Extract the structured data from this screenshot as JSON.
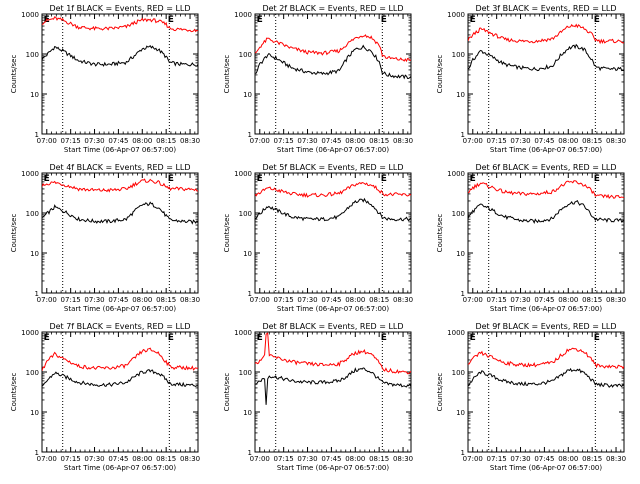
{
  "chart_data": {
    "type": "line",
    "ylabel": "Counts/sec",
    "xlabel": "Start Time (06-Apr-07 06:57:00)",
    "x_unit": "minutes",
    "xlim": [
      -3,
      95
    ],
    "ylim": [
      1,
      1000
    ],
    "yscale": "log",
    "xticks": [
      {
        "label": "07:00",
        "value": 0
      },
      {
        "label": "07:15",
        "value": 15
      },
      {
        "label": "07:30",
        "value": 30
      },
      {
        "label": "07:45",
        "value": 45
      },
      {
        "label": "08:00",
        "value": 60
      },
      {
        "label": "08:15",
        "value": 75
      },
      {
        "label": "08:30",
        "value": 90
      }
    ],
    "yticks": [
      {
        "label": "1",
        "value": 1
      },
      {
        "label": "10",
        "value": 10
      },
      {
        "label": "100",
        "value": 100
      },
      {
        "label": "1000",
        "value": 1000
      }
    ],
    "vlines": [
      10,
      77
    ],
    "markers": [
      {
        "label": "E",
        "x": -2
      },
      {
        "label": "E",
        "x": 76
      }
    ],
    "series_names": {
      "black": "Events",
      "red": "LLD"
    },
    "panels": [
      {
        "title": "Det 1f BLACK = Events, RED = LLD",
        "red": {
          "x": [
            -3,
            0,
            5,
            10,
            20,
            30,
            40,
            50,
            55,
            60,
            65,
            70,
            75,
            77,
            80,
            85,
            90,
            95
          ],
          "y": [
            600,
            680,
            780,
            700,
            470,
            430,
            430,
            480,
            600,
            700,
            720,
            660,
            550,
            450,
            420,
            410,
            400,
            390
          ]
        },
        "black": {
          "x": [
            -3,
            0,
            5,
            10,
            20,
            30,
            40,
            50,
            55,
            60,
            65,
            70,
            75,
            77,
            80,
            85,
            90,
            95
          ],
          "y": [
            75,
            95,
            150,
            120,
            68,
            55,
            55,
            62,
            90,
            135,
            150,
            130,
            85,
            62,
            58,
            55,
            55,
            55
          ]
        }
      },
      {
        "title": "Det 2f BLACK = Events, RED = LLD",
        "red": {
          "x": [
            -3,
            0,
            5,
            10,
            20,
            30,
            40,
            50,
            55,
            60,
            65,
            70,
            75,
            77,
            80,
            85,
            90,
            95
          ],
          "y": [
            100,
            150,
            240,
            200,
            140,
            110,
            105,
            120,
            180,
            250,
            300,
            260,
            170,
            95,
            80,
            75,
            72,
            70
          ]
        },
        "black": {
          "x": [
            -3,
            0,
            5,
            10,
            20,
            30,
            40,
            50,
            55,
            60,
            65,
            70,
            75,
            77,
            80,
            85,
            90,
            95
          ],
          "y": [
            30,
            55,
            95,
            80,
            45,
            35,
            32,
            38,
            80,
            130,
            150,
            120,
            65,
            35,
            30,
            28,
            27,
            26
          ]
        }
      },
      {
        "title": "Det 3f BLACK = Events, RED = LLD",
        "red": {
          "x": [
            -3,
            0,
            5,
            10,
            20,
            30,
            40,
            50,
            55,
            60,
            65,
            70,
            75,
            77,
            80,
            85,
            90,
            95
          ],
          "y": [
            220,
            300,
            420,
            350,
            230,
            210,
            210,
            240,
            340,
            480,
            520,
            430,
            300,
            230,
            210,
            210,
            210,
            205
          ]
        },
        "black": {
          "x": [
            -3,
            0,
            5,
            10,
            20,
            30,
            40,
            50,
            55,
            60,
            65,
            70,
            75,
            77,
            80,
            85,
            90,
            95
          ],
          "y": [
            40,
            70,
            120,
            95,
            55,
            45,
            42,
            50,
            90,
            140,
            155,
            130,
            70,
            48,
            44,
            42,
            42,
            42
          ]
        }
      },
      {
        "title": "Det 4f BLACK = Events, RED = LLD",
        "red": {
          "x": [
            -3,
            0,
            5,
            10,
            20,
            30,
            40,
            50,
            55,
            60,
            65,
            70,
            75,
            77,
            80,
            85,
            90,
            95
          ],
          "y": [
            480,
            540,
            580,
            520,
            400,
            370,
            370,
            400,
            520,
            630,
            640,
            580,
            450,
            410,
            400,
            400,
            390,
            380
          ]
        },
        "black": {
          "x": [
            -3,
            0,
            5,
            10,
            20,
            30,
            40,
            50,
            55,
            60,
            65,
            70,
            75,
            77,
            80,
            85,
            90,
            95
          ],
          "y": [
            75,
            95,
            140,
            115,
            70,
            62,
            62,
            70,
            110,
            160,
            170,
            140,
            85,
            68,
            65,
            62,
            60,
            60
          ]
        }
      },
      {
        "title": "Det 5f BLACK = Events, RED = LLD",
        "red": {
          "x": [
            -3,
            0,
            5,
            10,
            20,
            30,
            40,
            50,
            55,
            60,
            65,
            70,
            75,
            77,
            80,
            85,
            90,
            95
          ],
          "y": [
            280,
            320,
            420,
            380,
            300,
            280,
            280,
            310,
            400,
            520,
            560,
            500,
            380,
            310,
            290,
            290,
            285,
            280
          ]
        },
        "black": {
          "x": [
            -3,
            0,
            5,
            10,
            20,
            30,
            40,
            50,
            55,
            60,
            65,
            70,
            75,
            77,
            80,
            85,
            90,
            95
          ],
          "y": [
            75,
            95,
            150,
            120,
            80,
            70,
            70,
            80,
            130,
            190,
            210,
            170,
            100,
            78,
            72,
            70,
            70,
            70
          ]
        }
      },
      {
        "title": "Det 6f BLACK = Events, RED = LLD",
        "red": {
          "x": [
            -3,
            0,
            5,
            10,
            20,
            30,
            40,
            50,
            55,
            60,
            65,
            70,
            75,
            77,
            80,
            85,
            90,
            95
          ],
          "y": [
            330,
            430,
            560,
            470,
            330,
            300,
            300,
            340,
            460,
            580,
            600,
            500,
            350,
            270,
            260,
            255,
            250,
            250
          ]
        },
        "black": {
          "x": [
            -3,
            0,
            5,
            10,
            20,
            30,
            40,
            50,
            55,
            60,
            65,
            70,
            75,
            77,
            80,
            85,
            90,
            95
          ],
          "y": [
            75,
            110,
            160,
            130,
            80,
            65,
            62,
            72,
            120,
            170,
            190,
            150,
            85,
            70,
            68,
            66,
            65,
            65
          ]
        }
      },
      {
        "title": "Det 7f BLACK = Events, RED = LLD",
        "red": {
          "x": [
            -3,
            0,
            5,
            10,
            20,
            30,
            40,
            50,
            55,
            60,
            65,
            70,
            75,
            77,
            80,
            85,
            90,
            95
          ],
          "y": [
            110,
            180,
            280,
            220,
            140,
            125,
            125,
            145,
            220,
            330,
            360,
            300,
            180,
            140,
            130,
            130,
            125,
            125
          ]
        },
        "black": {
          "x": [
            -3,
            0,
            5,
            10,
            20,
            30,
            40,
            50,
            55,
            60,
            65,
            70,
            75,
            77,
            80,
            85,
            90,
            95
          ],
          "y": [
            40,
            60,
            95,
            80,
            55,
            48,
            48,
            55,
            75,
            100,
            105,
            95,
            65,
            52,
            50,
            48,
            47,
            46
          ]
        }
      },
      {
        "title": "Det 8f BLACK = Events, RED = LLD",
        "red": {
          "x": [
            -3,
            0,
            3,
            4,
            5,
            6,
            10,
            20,
            30,
            40,
            50,
            55,
            60,
            65,
            70,
            75,
            77,
            80,
            85,
            90,
            95
          ],
          "y": [
            150,
            200,
            250,
            900,
            1000,
            250,
            230,
            180,
            160,
            150,
            160,
            220,
            300,
            330,
            280,
            170,
            120,
            110,
            105,
            100,
            100
          ]
        },
        "black": {
          "x": [
            -3,
            0,
            3,
            4,
            5,
            6,
            10,
            20,
            30,
            40,
            50,
            55,
            60,
            65,
            70,
            75,
            77,
            80,
            85,
            90,
            95
          ],
          "y": [
            50,
            60,
            70,
            15,
            70,
            80,
            75,
            60,
            55,
            55,
            60,
            80,
            110,
            120,
            100,
            65,
            55,
            50,
            48,
            46,
            45
          ]
        }
      },
      {
        "title": "Det 9f BLACK = Events, RED = LLD",
        "red": {
          "x": [
            -3,
            0,
            5,
            10,
            20,
            30,
            40,
            50,
            55,
            60,
            65,
            70,
            75,
            77,
            80,
            85,
            90,
            95
          ],
          "y": [
            150,
            210,
            300,
            250,
            170,
            150,
            150,
            170,
            250,
            360,
            380,
            320,
            200,
            150,
            140,
            140,
            135,
            135
          ]
        },
        "black": {
          "x": [
            -3,
            0,
            5,
            10,
            20,
            30,
            40,
            50,
            55,
            60,
            65,
            70,
            75,
            77,
            80,
            85,
            90,
            95
          ],
          "y": [
            45,
            65,
            100,
            85,
            58,
            50,
            50,
            58,
            80,
            110,
            115,
            95,
            62,
            50,
            48,
            46,
            45,
            45
          ]
        }
      }
    ]
  },
  "colors": {
    "red": "#ff0000",
    "black": "#000000"
  }
}
